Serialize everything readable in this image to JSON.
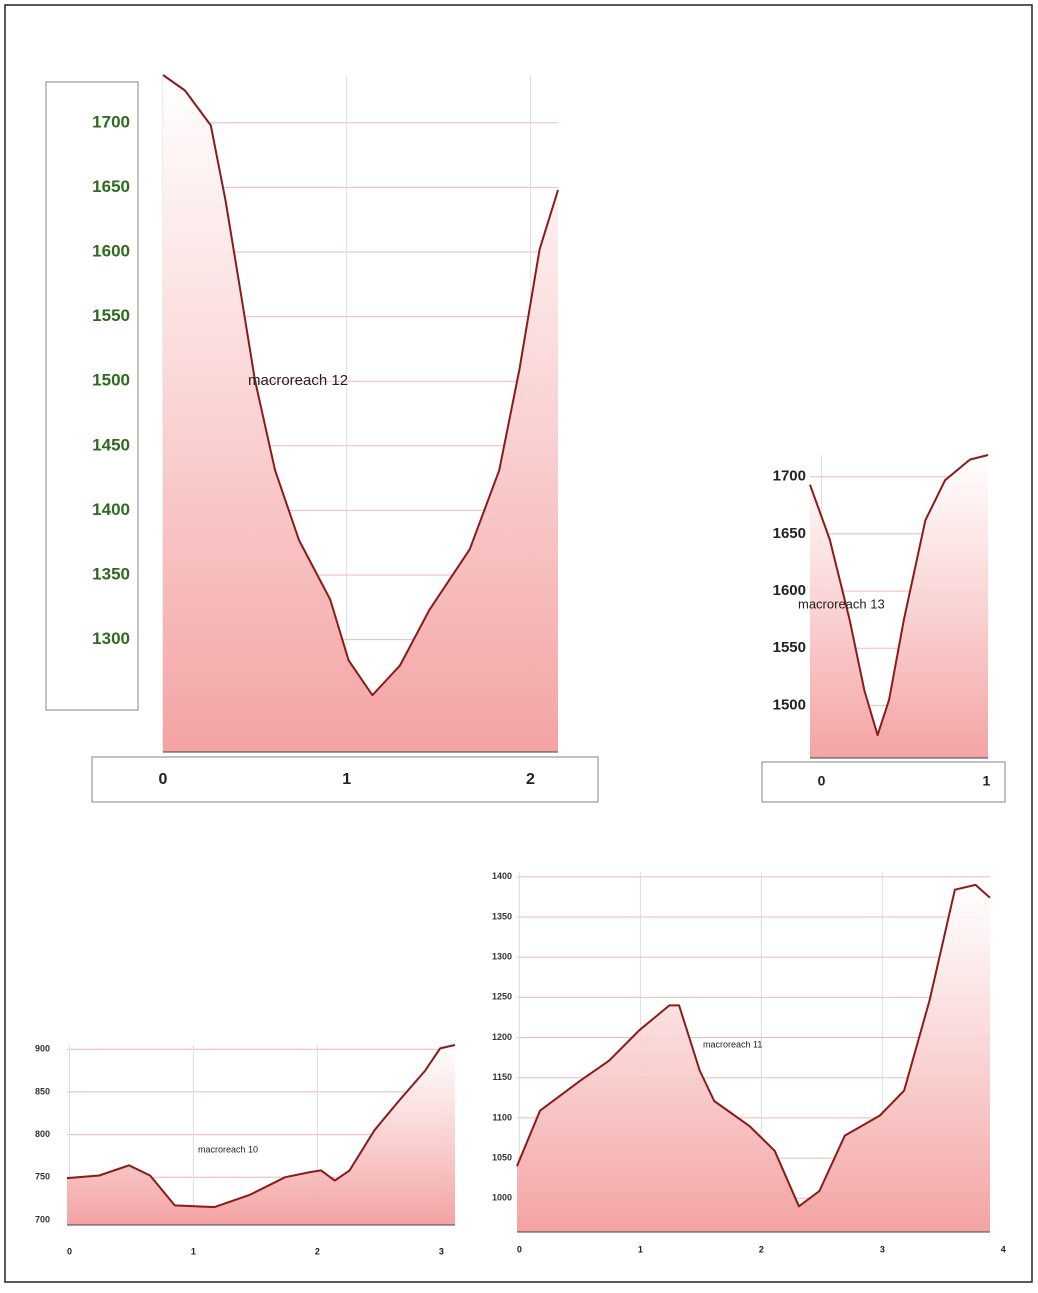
{
  "chart_data": [
    {
      "type": "area",
      "annotation": "macroreach 12",
      "color": "#8b1a1a",
      "fill": "#f4a3a3",
      "grid": true,
      "x": [
        0,
        0.12,
        0.26,
        0.34,
        0.42,
        0.5,
        0.61,
        0.74,
        0.91,
        1.01,
        1.14,
        1.29,
        1.45,
        1.67,
        1.83,
        1.94,
        2.05,
        2.15
      ],
      "values": [
        1737,
        1725,
        1698,
        1640,
        1571,
        1501,
        1431,
        1377,
        1331,
        1284,
        1257,
        1280,
        1323,
        1370,
        1431,
        1509,
        1602,
        1648
      ],
      "xlim": [
        0,
        2.15
      ],
      "ylim": [
        1213,
        1737
      ],
      "xticks": [
        0,
        1,
        2
      ],
      "yticks": [
        1300,
        1350,
        1400,
        1450,
        1500,
        1550,
        1600,
        1650,
        1700
      ]
    },
    {
      "type": "area",
      "annotation": "macroreach 13",
      "color": "#8b1a1a",
      "fill": "#f4a3a3",
      "grid": true,
      "x": [
        -0.07,
        0.05,
        0.17,
        0.26,
        0.34,
        0.41,
        0.5,
        0.63,
        0.75,
        0.9,
        1.01
      ],
      "values": [
        1693,
        1645,
        1575,
        1513,
        1474,
        1505,
        1575,
        1662,
        1697,
        1715,
        1719
      ],
      "xlim": [
        -0.07,
        1.01
      ],
      "ylim": [
        1454,
        1719
      ],
      "xticks": [
        0,
        1
      ],
      "yticks": [
        1500,
        1550,
        1600,
        1650,
        1700
      ]
    },
    {
      "type": "area",
      "annotation": "macroreach 10",
      "color": "#8b1a1a",
      "fill": "#f4a3a3",
      "grid": true,
      "x": [
        -0.02,
        0.24,
        0.48,
        0.65,
        0.85,
        1.17,
        1.45,
        1.74,
        1.94,
        2.03,
        2.14,
        2.26,
        2.46,
        2.66,
        2.87,
        2.99,
        3.11
      ],
      "values": [
        749,
        752,
        764,
        752,
        717,
        715,
        729,
        750,
        756,
        758,
        746,
        758,
        805,
        840,
        875,
        901,
        905
      ],
      "xlim": [
        -0.02,
        3.11
      ],
      "ylim": [
        694,
        905
      ],
      "xticks": [
        0,
        1,
        2,
        3
      ],
      "yticks": [
        700,
        750,
        800,
        850,
        900
      ]
    },
    {
      "type": "area",
      "annotation": "macroreach 11",
      "color": "#8b1a1a",
      "fill": "#f4a3a3",
      "grid": true,
      "x": [
        -0.02,
        0.17,
        0.5,
        0.74,
        0.99,
        1.24,
        1.32,
        1.49,
        1.61,
        1.9,
        2.11,
        2.31,
        2.48,
        2.69,
        2.98,
        3.18,
        3.39,
        3.6,
        3.77,
        3.89
      ],
      "values": [
        1040,
        1109,
        1146,
        1171,
        1209,
        1240,
        1240,
        1159,
        1121,
        1090,
        1059,
        990,
        1009,
        1078,
        1103,
        1134,
        1246,
        1384,
        1390,
        1374
      ],
      "xlim": [
        -0.02,
        3.89
      ],
      "ylim": [
        958,
        1406
      ],
      "xticks": [
        0,
        1,
        2,
        3,
        4
      ],
      "yticks": [
        1000,
        1050,
        1100,
        1150,
        1200,
        1250,
        1300,
        1350,
        1400
      ]
    }
  ]
}
